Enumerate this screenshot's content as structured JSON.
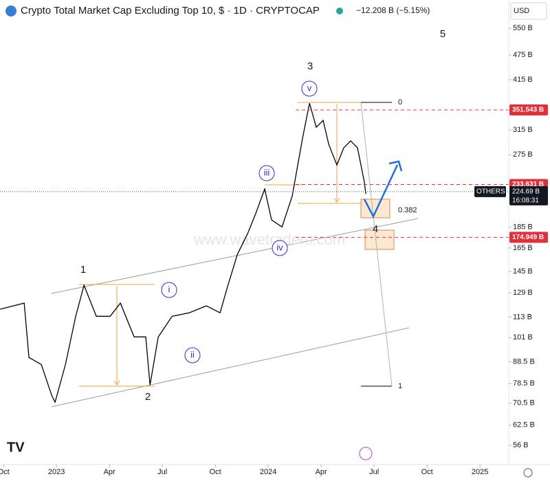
{
  "header": {
    "title": "Crypto Total Market Cap Excluding Top 10, $ · 1D · CRYPTOCAP",
    "change": "−12.208 B (−5.15%)",
    "currency": "USD"
  },
  "chart_data": {
    "type": "line",
    "color": "#000000",
    "log_scale": true,
    "x": [
      -0.19,
      1.17,
      1.44,
      2.14,
      2.73,
      2.92,
      3.51,
      4.09,
      4.56,
      5.26,
      6.04,
      6.62,
      7.4,
      8.06,
      8.3,
      8.77,
      9.55,
      10.52,
      11.49,
      12.27,
      12.66,
      13.25,
      13.83,
      14.3,
      14.8,
      15.19,
      15.78,
      16.36,
      16.95,
      17.34,
      17.72,
      18.11,
      18.43,
      18.89,
      19.28,
      19.67,
      20.06,
      20.45,
      20.53
    ],
    "values": [
      118,
      122,
      90.6,
      87.2,
      73.6,
      70.9,
      87.2,
      113.5,
      134.5,
      113.5,
      113.5,
      122,
      101.4,
      101.4,
      77.9,
      101.4,
      113.5,
      115.7,
      120.2,
      115.7,
      132,
      159.3,
      178.4,
      199.8,
      227.9,
      192.5,
      185.2,
      219.5,
      302,
      364.8,
      319.8,
      332,
      291,
      260,
      285.7,
      296.7,
      285.7,
      236.7,
      222
    ],
    "xlim": [
      -0.2,
      28.63
    ],
    "xticks": [
      {
        "value": 0,
        "label": "Oct"
      },
      {
        "value": 3,
        "label": "2023"
      },
      {
        "value": 6,
        "label": "Apr"
      },
      {
        "value": 9,
        "label": "Jul"
      },
      {
        "value": 12,
        "label": "Oct"
      },
      {
        "value": 15,
        "label": "2024"
      },
      {
        "value": 18,
        "label": "Apr"
      },
      {
        "value": 21,
        "label": "Jul"
      },
      {
        "value": 24,
        "label": "Oct"
      },
      {
        "value": 27,
        "label": "2025"
      }
    ],
    "ylim": [
      50.4,
      642
    ],
    "yticks": [
      {
        "value": 550,
        "label": "550 B"
      },
      {
        "value": 475,
        "label": "475 B"
      },
      {
        "value": 415,
        "label": "415 B"
      },
      {
        "value": 315,
        "label": "315 B"
      },
      {
        "value": 275,
        "label": "275 B"
      },
      {
        "value": 185,
        "label": "185 B"
      },
      {
        "value": 165,
        "label": "165 B"
      },
      {
        "value": 145,
        "label": "145 B"
      },
      {
        "value": 129,
        "label": "129 B"
      },
      {
        "value": 113,
        "label": "113 B"
      },
      {
        "value": 101,
        "label": "101 B"
      },
      {
        "value": 88.5,
        "label": "88.5 B"
      },
      {
        "value": 78.5,
        "label": "78.5 B"
      },
      {
        "value": 70.5,
        "label": "70.5 B"
      },
      {
        "value": 62.5,
        "label": "62.5 B"
      },
      {
        "value": 56,
        "label": "56 B"
      }
    ],
    "price_lines": [
      {
        "value": 351.543,
        "label": "351.543 B"
      },
      {
        "value": 233.631,
        "label": "233.631 B"
      },
      {
        "value": 174.949,
        "label": "174.949 B"
      }
    ],
    "current": {
      "value": 224.69,
      "label": "224.69 B",
      "timer": "16:08:31",
      "symbol": "OTHERS"
    }
  },
  "annotations": {
    "waves": [
      "1",
      "2",
      "3",
      "4",
      "5"
    ],
    "subwaves": [
      "i",
      "ii",
      "iii",
      "iv",
      "v"
    ],
    "fib": [
      "0",
      "0.382",
      "1"
    ],
    "watermark": "www.wavetraders.com"
  }
}
